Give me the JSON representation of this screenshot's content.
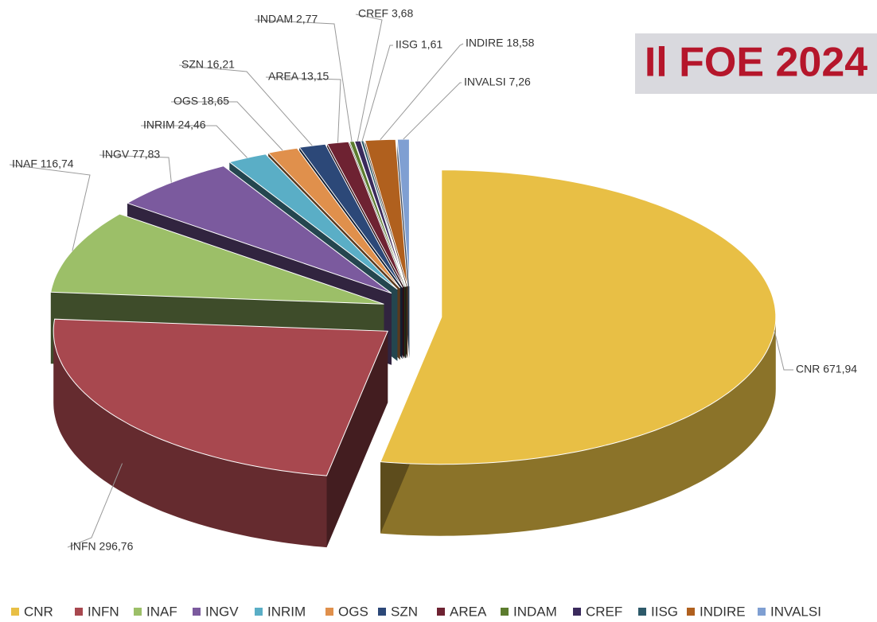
{
  "chart_data": {
    "type": "pie3d",
    "title": "Il FOE 2024",
    "categories": [
      "CNR",
      "INFN",
      "INAF",
      "INGV",
      "INRIM",
      "OGS",
      "SZN",
      "AREA",
      "INDAM",
      "CREF",
      "IISG",
      "INDIRE",
      "INVALSI"
    ],
    "values": [
      671.94,
      296.76,
      116.74,
      77.83,
      24.46,
      18.65,
      16.21,
      13.15,
      2.77,
      3.68,
      1.61,
      18.58,
      7.26
    ],
    "value_labels": [
      "CNR 671,94",
      "INFN 296,76",
      "INAF 116,74",
      "INGV 77,83",
      "INRIM 24,46",
      "OGS 18,65",
      "SZN 16,21",
      "AREA 13,15",
      "INDAM 2,77",
      "CREF 3,68",
      "IISG 1,61",
      "INDIRE 18,58",
      "INVALSI 7,26"
    ],
    "colors": [
      "#e8bf45",
      "#a8484f",
      "#9cbf68",
      "#7b5a9e",
      "#5aaec6",
      "#e0904c",
      "#2c4878",
      "#6e2232",
      "#5c7c2e",
      "#3a2a5c",
      "#2e5a6a",
      "#b0601e",
      "#7f9fd2"
    ],
    "legend": "bottom"
  }
}
